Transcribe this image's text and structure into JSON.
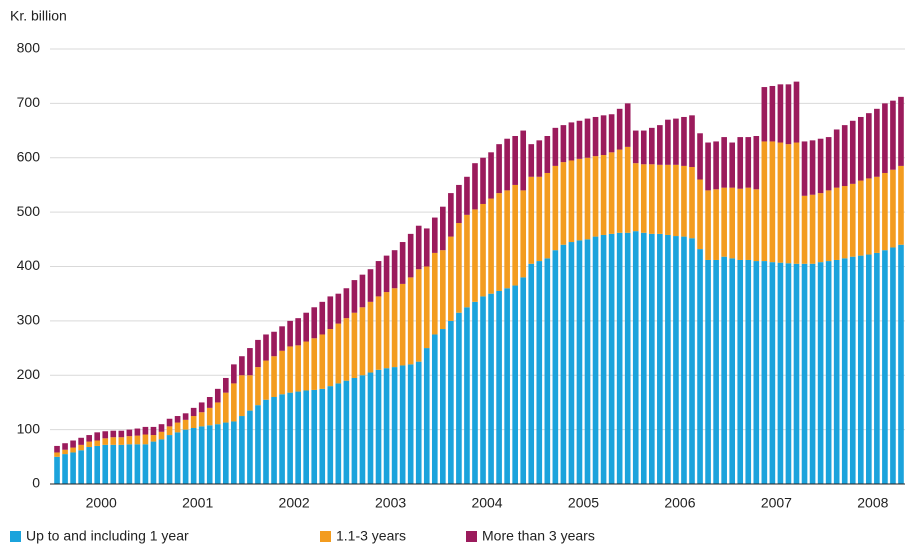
{
  "chart_data": {
    "type": "stacked_bar",
    "y_label": "Kr. billion",
    "categories": [
      null,
      null,
      null,
      null,
      null,
      "2000",
      null,
      null,
      null,
      null,
      null,
      null,
      null,
      null,
      null,
      null,
      null,
      "2001",
      null,
      null,
      null,
      null,
      null,
      null,
      null,
      null,
      null,
      null,
      null,
      "2002",
      null,
      null,
      null,
      null,
      null,
      null,
      null,
      null,
      null,
      null,
      null,
      "2003",
      null,
      null,
      null,
      null,
      null,
      null,
      null,
      null,
      null,
      null,
      null,
      "2004",
      null,
      null,
      null,
      null,
      null,
      null,
      null,
      null,
      null,
      null,
      null,
      "2005",
      null,
      null,
      null,
      null,
      null,
      null,
      null,
      null,
      null,
      null,
      null,
      "2006",
      null,
      null,
      null,
      null,
      null,
      null,
      null,
      null,
      null,
      null,
      null,
      "2007",
      null,
      null,
      null,
      null,
      null,
      null,
      null,
      null,
      null,
      null,
      null,
      "2008",
      null,
      null,
      null,
      null
    ],
    "series": [
      {
        "name": "Up to and including 1 year",
        "color": "#1ba3dc",
        "values": [
          50,
          55,
          58,
          62,
          68,
          70,
          72,
          72,
          72,
          73,
          73,
          73,
          78,
          82,
          90,
          95,
          100,
          103,
          106,
          108,
          110,
          113,
          115,
          125,
          135,
          145,
          155,
          160,
          165,
          168,
          170,
          172,
          173,
          175,
          180,
          185,
          190,
          195,
          200,
          205,
          210,
          213,
          215,
          218,
          220,
          225,
          250,
          275,
          285,
          300,
          315,
          325,
          335,
          345,
          350,
          355,
          360,
          365,
          380,
          405,
          410,
          415,
          430,
          440,
          445,
          448,
          450,
          455,
          458,
          460,
          462,
          462,
          465,
          462,
          460,
          460,
          458,
          456,
          455,
          452,
          432,
          412,
          412,
          418,
          415,
          412,
          412,
          410,
          410,
          408,
          407,
          406,
          405,
          405,
          405,
          408,
          410,
          412,
          415,
          418,
          420,
          422,
          425,
          430,
          435,
          440
        ]
      },
      {
        "name": "1.1-3 years",
        "color": "#f39c1f",
        "values": [
          8,
          8,
          9,
          10,
          10,
          10,
          12,
          14,
          14,
          15,
          16,
          18,
          12,
          14,
          16,
          18,
          18,
          22,
          26,
          32,
          40,
          55,
          70,
          75,
          65,
          70,
          72,
          75,
          80,
          85,
          85,
          90,
          95,
          100,
          105,
          110,
          115,
          120,
          125,
          130,
          135,
          140,
          145,
          150,
          160,
          170,
          150,
          150,
          145,
          155,
          165,
          170,
          170,
          170,
          175,
          180,
          180,
          185,
          160,
          160,
          155,
          157,
          155,
          152,
          150,
          150,
          150,
          148,
          147,
          150,
          153,
          158,
          125,
          126,
          128,
          127,
          129,
          131,
          130,
          131,
          128,
          128,
          130,
          127,
          130,
          131,
          133,
          132,
          220,
          222,
          221,
          219,
          223,
          125,
          127,
          127,
          130,
          133,
          133,
          134,
          138,
          140,
          140,
          142,
          143,
          145
        ]
      },
      {
        "name": "More than 3 years",
        "color": "#9b1b5c",
        "values": [
          12,
          12,
          13,
          13,
          12,
          15,
          13,
          12,
          12,
          12,
          13,
          14,
          15,
          14,
          14,
          12,
          12,
          15,
          18,
          20,
          25,
          27,
          35,
          35,
          50,
          50,
          48,
          45,
          45,
          47,
          50,
          53,
          57,
          60,
          60,
          55,
          55,
          60,
          60,
          60,
          65,
          67,
          70,
          77,
          80,
          80,
          70,
          65,
          80,
          80,
          70,
          70,
          85,
          85,
          85,
          90,
          95,
          90,
          110,
          60,
          67,
          68,
          70,
          68,
          70,
          70,
          72,
          72,
          73,
          70,
          75,
          80,
          60,
          62,
          67,
          73,
          83,
          85,
          90,
          95,
          85,
          88,
          88,
          93,
          83,
          95,
          93,
          98,
          100,
          102,
          107,
          110,
          112,
          100,
          100,
          100,
          98,
          107,
          112,
          116,
          117,
          120,
          125,
          128,
          127,
          127
        ]
      }
    ],
    "ylim": [
      0,
      800
    ],
    "yticks": [
      0,
      100,
      200,
      300,
      400,
      500,
      600,
      700,
      800
    ],
    "grid": true
  }
}
